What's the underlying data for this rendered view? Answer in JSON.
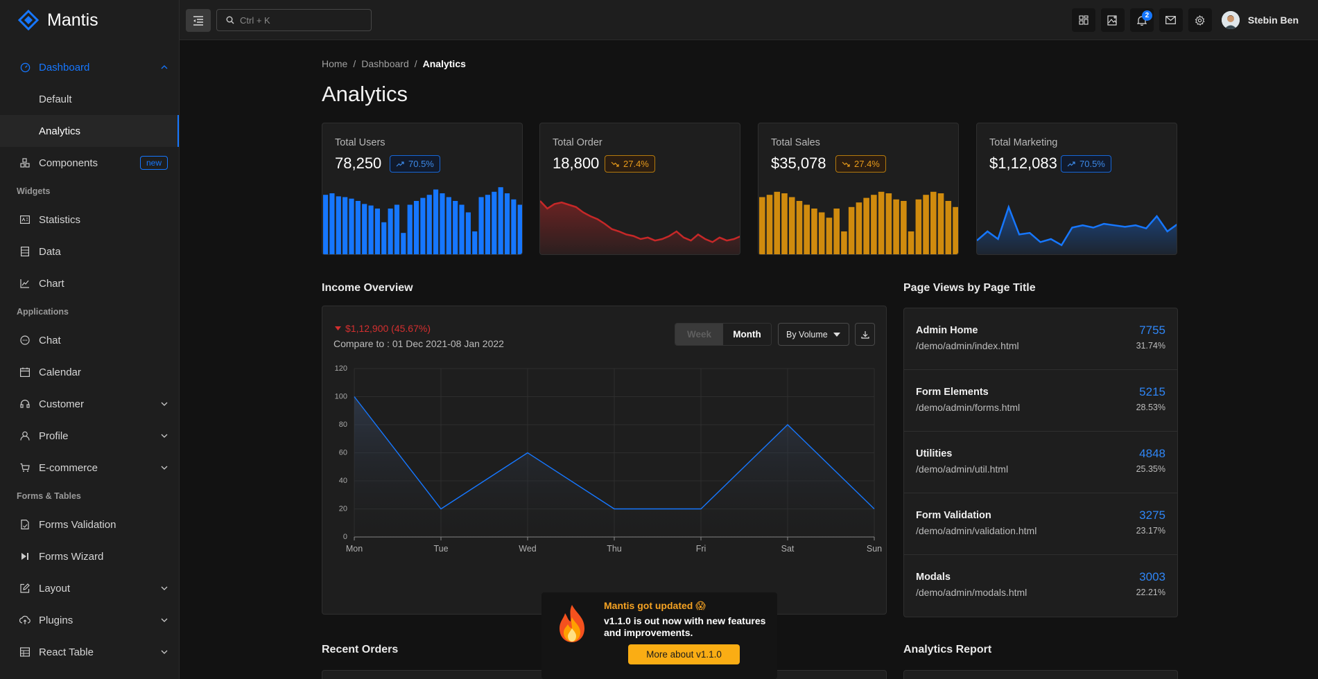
{
  "app": {
    "name": "Mantis"
  },
  "search": {
    "placeholder": "Ctrl + K"
  },
  "header": {
    "notification_count": "2",
    "user_name": "Stebin Ben"
  },
  "sidebar": {
    "dashboard": {
      "label": "Dashboard",
      "sub": [
        "Default",
        "Analytics"
      ]
    },
    "components": {
      "label": "Components",
      "badge": "new"
    },
    "widgets_group": "Widgets",
    "widgets": [
      "Statistics",
      "Data",
      "Chart"
    ],
    "applications_group": "Applications",
    "applications": [
      "Chat",
      "Calendar",
      "Customer",
      "Profile",
      "E-commerce"
    ],
    "forms_group": "Forms & Tables",
    "forms": [
      "Forms Validation",
      "Forms Wizard",
      "Layout",
      "Plugins",
      "React Table"
    ]
  },
  "breadcrumb": {
    "home": "Home",
    "sep1": "/",
    "dashboard": "Dashboard",
    "sep2": "/",
    "current": "Analytics"
  },
  "page": {
    "title": "Analytics"
  },
  "stats": [
    {
      "label": "Total Users",
      "value": "78,250",
      "change": "70.5%",
      "trend": "up",
      "color": "#1677ff"
    },
    {
      "label": "Total Order",
      "value": "18,800",
      "change": "27.4%",
      "trend": "down",
      "color": "#c62828"
    },
    {
      "label": "Total Sales",
      "value": "$35,078",
      "change": "27.4%",
      "trend": "down",
      "color": "#d08b0e"
    },
    {
      "label": "Total Marketing",
      "value": "$1,12,083",
      "change": "70.5%",
      "trend": "up",
      "color": "#1677ff"
    }
  ],
  "income": {
    "title": "Income Overview",
    "delta": "$1,12,900 (45.67%)",
    "compare": "Compare to : 01 Dec 2021-08 Jan 2022",
    "week_label": "Week",
    "month_label": "Month",
    "select_value": "By Volume"
  },
  "chart_data": {
    "type": "area",
    "categories": [
      "Mon",
      "Tue",
      "Wed",
      "Thu",
      "Fri",
      "Sat",
      "Sun"
    ],
    "values": [
      100,
      20,
      60,
      20,
      20,
      80,
      20
    ],
    "yticks": [
      0,
      20,
      40,
      60,
      80,
      100,
      120
    ],
    "ylim": [
      0,
      120
    ],
    "grid": true
  },
  "page_views": {
    "title": "Page Views by Page Title",
    "rows": [
      {
        "title": "Admin Home",
        "url": "/demo/admin/index.html",
        "count": "7755",
        "pct": "31.74%"
      },
      {
        "title": "Form Elements",
        "url": "/demo/admin/forms.html",
        "count": "5215",
        "pct": "28.53%"
      },
      {
        "title": "Utilities",
        "url": "/demo/admin/util.html",
        "count": "4848",
        "pct": "25.35%"
      },
      {
        "title": "Form Validation",
        "url": "/demo/admin/validation.html",
        "count": "3275",
        "pct": "23.17%"
      },
      {
        "title": "Modals",
        "url": "/demo/admin/modals.html",
        "count": "3003",
        "pct": "22.21%"
      }
    ]
  },
  "recent_orders": {
    "title": "Recent Orders"
  },
  "analytics_report": {
    "title": "Analytics Report"
  },
  "toast": {
    "title": "Mantis got updated 😱",
    "body": "v1.1.0 is out now with new features and improvements.",
    "button": "More about v1.1.0"
  }
}
